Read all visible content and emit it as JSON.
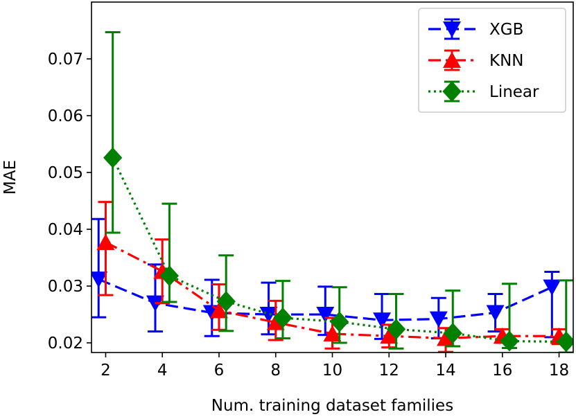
{
  "chart_data": {
    "type": "line",
    "title": "",
    "xlabel": "Num. training dataset families",
    "ylabel": "MAE",
    "xlim": [
      1.5,
      18.5
    ],
    "ylim": [
      0.0183,
      0.08
    ],
    "xticks": [
      2,
      4,
      6,
      8,
      10,
      12,
      14,
      16,
      18
    ],
    "xtick_labels": [
      "2",
      "4",
      "6",
      "8",
      "10",
      "12",
      "14",
      "16",
      "18"
    ],
    "yticks": [
      0.02,
      0.03,
      0.04,
      0.05,
      0.06,
      0.07
    ],
    "ytick_labels": [
      "0.02",
      "0.03",
      "0.04",
      "0.05",
      "0.06",
      "0.07"
    ],
    "grid": false,
    "legend_position": "top-right",
    "series": [
      {
        "name": "XGB",
        "color": "#0000ff",
        "marker": "triangle-down",
        "linestyle": "dashed",
        "x": [
          1.75,
          3.75,
          5.75,
          7.75,
          9.75,
          11.75,
          13.75,
          15.75,
          17.75
        ],
        "values": [
          0.0312,
          0.027,
          0.0253,
          0.025,
          0.025,
          0.024,
          0.0242,
          0.0253,
          0.0298
        ],
        "err_low": [
          0.0245,
          0.022,
          0.0212,
          0.0215,
          0.0214,
          0.0207,
          0.0208,
          0.022,
          0.021
        ],
        "err_high": [
          0.0418,
          0.0338,
          0.0311,
          0.0306,
          0.0299,
          0.0286,
          0.0279,
          0.0286,
          0.0325
        ]
      },
      {
        "name": "KNN",
        "color": "#ff0000",
        "marker": "triangle-up",
        "linestyle": "dashdot",
        "x": [
          2.0,
          4.0,
          6.0,
          8.0,
          10.0,
          12.0,
          14.0,
          16.0,
          18.0
        ],
        "values": [
          0.0377,
          0.0326,
          0.0257,
          0.0236,
          0.0216,
          0.0212,
          0.0208,
          0.0212,
          0.0212
        ],
        "err_low": [
          0.0284,
          0.027,
          0.0223,
          0.0205,
          0.019,
          0.0192,
          0.0184,
          0.02,
          0.0198
        ],
        "err_high": [
          0.0448,
          0.0382,
          0.0303,
          0.0274,
          0.0244,
          0.0232,
          0.0226,
          0.0224,
          0.0224
        ]
      },
      {
        "name": "Linear",
        "color": "#008000",
        "marker": "diamond",
        "linestyle": "dotted",
        "x": [
          2.25,
          4.25,
          6.25,
          8.25,
          10.25,
          12.25,
          14.25,
          16.25,
          18.25
        ],
        "values": [
          0.0526,
          0.0318,
          0.0273,
          0.0244,
          0.0237,
          0.0224,
          0.0217,
          0.0203,
          0.0202
        ],
        "err_low": [
          0.0394,
          0.0272,
          0.0221,
          0.0208,
          0.02,
          0.019,
          0.0194,
          0.0191,
          0.0183
        ],
        "err_high": [
          0.0747,
          0.0445,
          0.0354,
          0.0309,
          0.0298,
          0.0286,
          0.0292,
          0.0304,
          0.031
        ]
      }
    ]
  }
}
